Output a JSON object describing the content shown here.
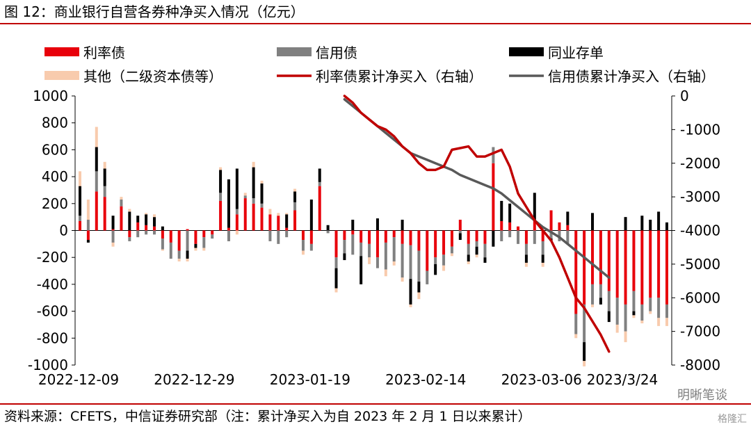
{
  "figure": {
    "title": "图 12：商业银行自营各券种净买入情况（亿元）",
    "source": "资料来源：CFETS，中信证券研究部（注：累计净买入为自 2023 年 2 月 1 日以来累计）",
    "watermark": "明晰笔谈",
    "watermark2": "格隆汇"
  },
  "chart_data": {
    "type": "bar",
    "stacked": true,
    "title": "商业银行自营各券种净买入情况（亿元）",
    "grid": false,
    "legend_position": "top",
    "ylim": [
      -1000,
      1000
    ],
    "y_ticks": [
      1000,
      800,
      600,
      400,
      200,
      0,
      -200,
      -400,
      -600,
      -800,
      -1000
    ],
    "y2lim": [
      -8000,
      0
    ],
    "y2_ticks": [
      0,
      -1000,
      -2000,
      -3000,
      -4000,
      -5000,
      -6000,
      -7000,
      -8000
    ],
    "x_tick_labels": [
      "2022-12-09",
      "2022-12-29",
      "2023-01-19",
      "2023-02-14",
      "2023-03-06",
      "2023/3/24"
    ],
    "colors": {
      "rate": "#e8000b",
      "credit": "#808080",
      "ncd": "#000000",
      "other": "#f8cbad",
      "rate_cum": "#c00000",
      "credit_cum": "#595959"
    },
    "series": [
      {
        "name": "利率债",
        "type": "bar",
        "values": [
          70,
          -70,
          290,
          250,
          10,
          180,
          -50,
          60,
          40,
          30,
          -60,
          -90,
          -150,
          10,
          -100,
          -50,
          -30,
          220,
          20,
          120,
          240,
          200,
          170,
          120,
          110,
          20,
          150,
          -70,
          -100,
          330,
          0,
          -200,
          -70,
          -30,
          -90,
          -100,
          -200,
          -90,
          -50,
          -100,
          -110,
          -150,
          -300,
          -200,
          -180,
          -120,
          80,
          -100,
          -80,
          -100,
          500,
          70,
          60,
          30,
          -100,
          70,
          -80,
          150,
          60,
          40,
          -620,
          -550,
          -400,
          -400,
          -450,
          -500,
          -550,
          -450,
          -550,
          -500,
          -500,
          -550
        ]
      },
      {
        "name": "信用债",
        "type": "bar",
        "values": [
          40,
          80,
          150,
          80,
          -90,
          50,
          -30,
          -50,
          -30,
          -30,
          -80,
          -120,
          -60,
          -150,
          0,
          -80,
          -30,
          60,
          -80,
          40,
          20,
          40,
          30,
          -80,
          -100,
          -50,
          60,
          -80,
          -50,
          30,
          -20,
          -80,
          -100,
          -150,
          -100,
          -100,
          -80,
          -200,
          -180,
          -250,
          -250,
          -230,
          -100,
          -50,
          -80,
          -50,
          -20,
          -80,
          -40,
          -100,
          120,
          -80,
          -50,
          -100,
          -80,
          -100,
          -100,
          -60,
          -80,
          -100,
          -150,
          -280,
          -150,
          -100,
          -150,
          -200,
          -200,
          -150,
          -120,
          -100,
          -150,
          -100
        ]
      },
      {
        "name": "同业存单",
        "type": "bar",
        "values": [
          220,
          -20,
          180,
          130,
          100,
          0,
          140,
          50,
          80,
          70,
          30,
          0,
          0,
          -60,
          -30,
          0,
          0,
          170,
          360,
          300,
          0,
          230,
          150,
          0,
          0,
          100,
          80,
          0,
          230,
          100,
          40,
          -150,
          -50,
          80,
          -210,
          0,
          90,
          0,
          0,
          80,
          -190,
          -80,
          0,
          -80,
          0,
          0,
          -50,
          -50,
          -60,
          -40,
          -120,
          150,
          140,
          0,
          -60,
          210,
          -60,
          -20,
          0,
          100,
          0,
          -140,
          130,
          -50,
          -80,
          0,
          100,
          -30,
          110,
          80,
          140,
          60
        ]
      },
      {
        "name": "其他（二级资本债等）",
        "type": "bar",
        "values": [
          110,
          150,
          150,
          50,
          -30,
          20,
          20,
          0,
          10,
          20,
          -10,
          0,
          -20,
          -20,
          -20,
          -20,
          0,
          20,
          0,
          -30,
          20,
          40,
          20,
          40,
          20,
          10,
          20,
          -30,
          0,
          0,
          0,
          -30,
          0,
          0,
          0,
          -50,
          0,
          -50,
          -30,
          -30,
          -20,
          -50,
          0,
          0,
          -40,
          -20,
          0,
          -20,
          -20,
          0,
          0,
          0,
          0,
          0,
          -30,
          0,
          -30,
          0,
          0,
          0,
          -30,
          -40,
          -20,
          0,
          0,
          -60,
          -80,
          -20,
          -20,
          -20,
          -60,
          -60
        ]
      },
      {
        "name": "利率债累计净买入（右轴）",
        "type": "line",
        "axis": "right",
        "x_start_index": 32,
        "values": [
          0,
          -200,
          -500,
          -700,
          -900,
          -1000,
          -1200,
          -1500,
          -1700,
          -2000,
          -2200,
          -2200,
          -2100,
          -1600,
          -1550,
          -1500,
          -1800,
          -1800,
          -1700,
          -1600,
          -2100,
          -2900,
          -3300,
          -3700,
          -4000,
          -4300,
          -4800,
          -5400,
          -6000,
          -6300,
          -6700,
          -7100,
          -7600
        ]
      },
      {
        "name": "信用债累计净买入（右轴）",
        "type": "line",
        "axis": "right",
        "x_start_index": 32,
        "values": [
          -100,
          -300,
          -500,
          -700,
          -900,
          -1100,
          -1300,
          -1500,
          -1700,
          -1800,
          -1900,
          -2000,
          -2100,
          -2200,
          -2350,
          -2450,
          -2550,
          -2650,
          -2750,
          -2900,
          -3100,
          -3300,
          -3500,
          -3700,
          -3900,
          -4050,
          -4200,
          -4400,
          -4600,
          -4800,
          -5000,
          -5200,
          -5400
        ]
      }
    ]
  }
}
